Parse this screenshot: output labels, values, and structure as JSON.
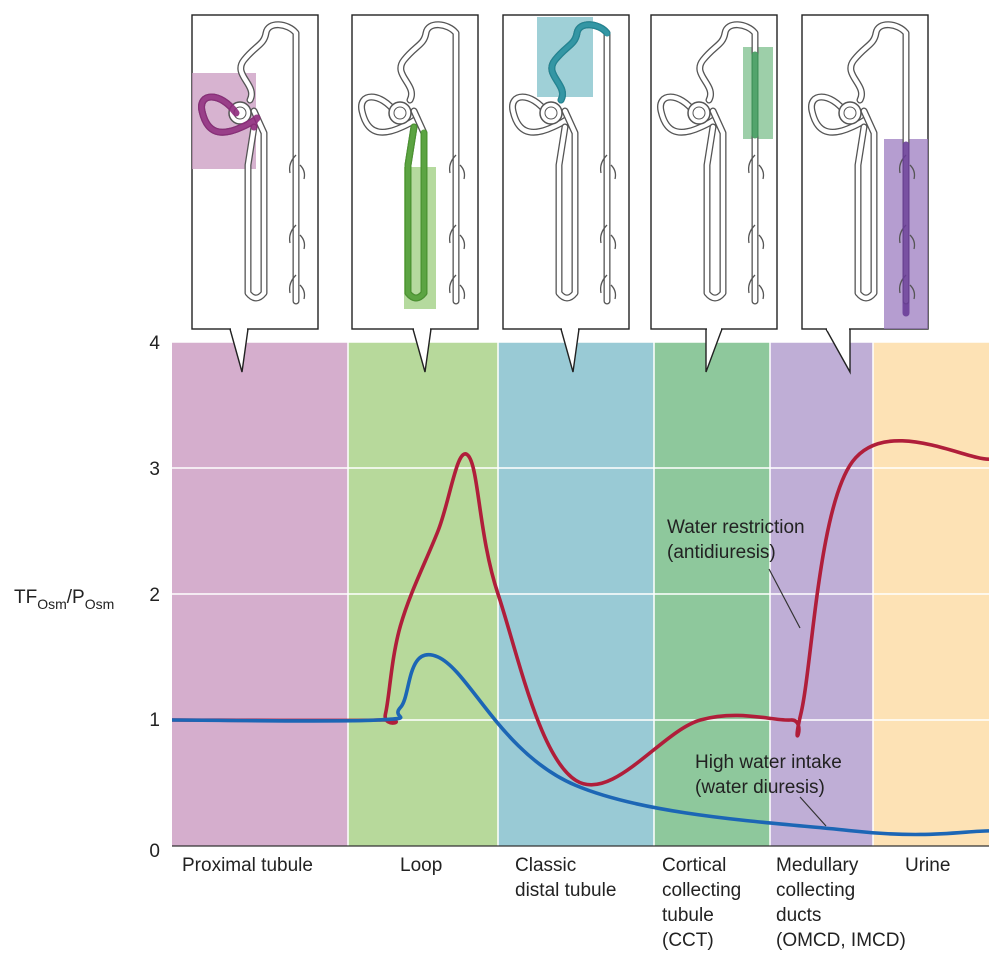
{
  "chart_data": {
    "type": "line",
    "title": "",
    "xlabel": "",
    "ylabel": "TF",
    "ylabel_sub1": "Osm",
    "ylabel_mid": "/P",
    "ylabel_sub2": "Osm",
    "ylim": [
      0,
      4
    ],
    "yticks": [
      "0",
      "1",
      "2",
      "3",
      "4"
    ],
    "grid": true,
    "segments": [
      {
        "name": "proximal",
        "label_lines": [
          "Proximal tubule"
        ],
        "color": "#d5aecd",
        "panel_shade": "#c99ac0"
      },
      {
        "name": "loop",
        "label_lines": [
          "Loop"
        ],
        "color": "#b7d99b",
        "panel_shade": "#9ccd7e"
      },
      {
        "name": "distal",
        "label_lines": [
          "Classic",
          "distal tubule"
        ],
        "color": "#99cad5",
        "panel_shade": "#7fc0c9"
      },
      {
        "name": "cct",
        "label_lines": [
          "Cortical",
          "collecting",
          "tubule",
          "(CCT)"
        ],
        "color": "#8ec89c",
        "panel_shade": "#7cbf8c"
      },
      {
        "name": "medullary",
        "label_lines": [
          "Medullary",
          "collecting",
          "ducts",
          "(OMCD, IMCD)"
        ],
        "color": "#bfaed6",
        "panel_shade": "#9c7cc0"
      },
      {
        "name": "urine",
        "label_lines": [
          "Urine"
        ],
        "color": "#fde2b5"
      }
    ],
    "series": [
      {
        "id": "water_restriction",
        "color": "#b01e3a",
        "label_lines": [
          "Water restriction",
          "(antidiuresis)"
        ],
        "points": [
          [
            0,
            1.0
          ],
          [
            1.2,
            1.0
          ],
          [
            1.25,
            1.05
          ],
          [
            1.35,
            1.75
          ],
          [
            1.6,
            2.5
          ],
          [
            1.8,
            3.1
          ],
          [
            2.0,
            2.0
          ],
          [
            2.5,
            0.52
          ],
          [
            3.4,
            1.0
          ],
          [
            4.2,
            1.0
          ],
          [
            4.3,
            1.05
          ],
          [
            4.8,
            3.05
          ],
          [
            6.0,
            3.07
          ]
        ]
      },
      {
        "id": "high_water_intake",
        "color": "#1c66b5",
        "label_lines": [
          "High water intake",
          "(water diuresis)"
        ],
        "points": [
          [
            0,
            1.0
          ],
          [
            1.2,
            1.0
          ],
          [
            1.35,
            1.1
          ],
          [
            1.6,
            1.5
          ],
          [
            2.5,
            0.48
          ],
          [
            4.8,
            0.12
          ],
          [
            6.0,
            0.12
          ]
        ]
      }
    ]
  },
  "panels": [
    {
      "name": "proximal",
      "highlight": "proximal tubule"
    },
    {
      "name": "loop",
      "highlight": "loop of Henle"
    },
    {
      "name": "distal",
      "highlight": "distal convoluted tubule"
    },
    {
      "name": "cct",
      "highlight": "cortical collecting tubule"
    },
    {
      "name": "medullary",
      "highlight": "medullary collecting duct"
    }
  ]
}
